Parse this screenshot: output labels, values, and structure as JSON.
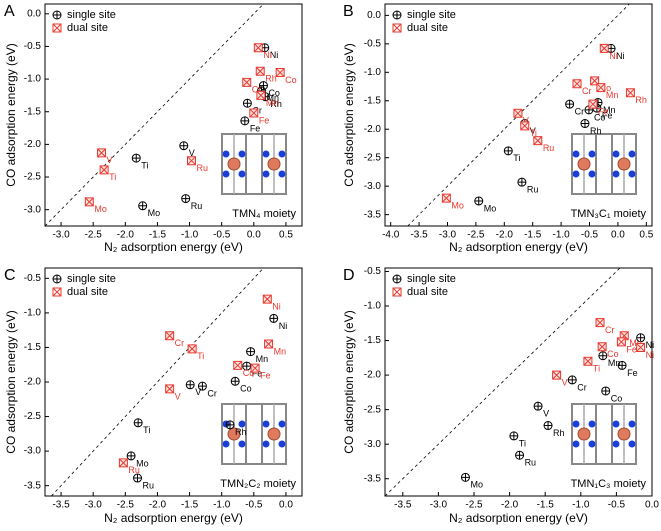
{
  "chart_data": [
    {
      "type": "scatter",
      "panel_label": "A",
      "annotation": "TMN₄ moiety",
      "x_label": "N₂ adsorption energy (eV)",
      "y_label": "CO adsorption energy (eV)",
      "xlim": [
        -3.25,
        0.75
      ],
      "ylim": [
        -3.25,
        0.15
      ],
      "xticks": [
        {
          "value": -3,
          "label": "-3.0"
        },
        -2.5,
        {
          "value": -2,
          "label": "-2.0"
        },
        -1.5,
        {
          "value": -1,
          "label": "-1.0"
        },
        -0.5,
        {
          "value": 0,
          "label": "0.0"
        },
        0.5
      ],
      "yticks": [
        {
          "value": -3,
          "label": "-3.0"
        },
        -2.5,
        {
          "value": -2,
          "label": "-2.0"
        },
        -1.5,
        {
          "value": -1,
          "label": "-1.0"
        },
        -0.5,
        {
          "value": 0,
          "label": "0.0"
        }
      ],
      "legend": "upper left",
      "series": [
        {
          "name": "single site",
          "color": "#000000",
          "marker": "circle-plus",
          "labels": [
            "Ni",
            "Co",
            "Mn",
            "Rh",
            "Cr",
            "Fe",
            "V",
            "Ti",
            "Ru",
            "Mo"
          ],
          "x": [
            0.17,
            0.15,
            0.12,
            0.18,
            -0.1,
            -0.14,
            -1.09,
            -1.83,
            -1.06,
            -1.73
          ],
          "values": [
            -0.52,
            -1.1,
            -1.18,
            -1.27,
            -1.37,
            -1.64,
            -2.02,
            -2.21,
            -2.83,
            -2.94
          ]
        },
        {
          "name": "dual site",
          "color": "#e8392e",
          "marker": "square-cross",
          "labels": [
            "Ni",
            "Rh",
            "Co",
            "Cr",
            "Mn",
            "Fe",
            "V",
            "Ti",
            "Ru",
            "Mo"
          ],
          "x": [
            0.07,
            0.1,
            0.41,
            -0.11,
            0.11,
            0.0,
            -2.37,
            -2.33,
            -0.97,
            -2.56
          ],
          "values": [
            -0.52,
            -0.88,
            -0.9,
            -1.05,
            -1.25,
            -1.52,
            -2.13,
            -2.39,
            -2.25,
            -2.88
          ]
        }
      ]
    },
    {
      "type": "scatter",
      "panel_label": "B",
      "annotation": "TMN₃C₁ moiety",
      "x_label": "N₂ adsorption energy (eV)",
      "y_label": "CO adsorption energy (eV)",
      "xlim": [
        -4.1,
        0.6
      ],
      "ylim": [
        -3.7,
        0.2
      ],
      "xticks": [
        {
          "value": -4,
          "label": "-4.0"
        },
        -3.5,
        {
          "value": -3,
          "label": "-3.0"
        },
        -2.5,
        {
          "value": -2,
          "label": "-2.0"
        },
        -1.5,
        {
          "value": -1,
          "label": "-1.0"
        },
        -0.5,
        {
          "value": 0,
          "label": "0.0"
        },
        0.5
      ],
      "yticks": [
        -3.5,
        {
          "value": -3,
          "label": "-3.0"
        },
        -2.5,
        {
          "value": -2,
          "label": "-2.0"
        },
        -1.5,
        {
          "value": -1,
          "label": "-1.0"
        },
        -0.5,
        {
          "value": 0,
          "label": "0.0"
        }
      ],
      "legend": "upper left",
      "series": [
        {
          "name": "single site",
          "color": "#000000",
          "marker": "circle-plus",
          "labels": [
            "Ni",
            "Cr",
            "Co",
            "Fe",
            "Mn",
            "Rh",
            "V",
            "Ti",
            "Ru",
            "Mo"
          ],
          "x": [
            -0.12,
            -0.85,
            -0.51,
            -0.37,
            -0.35,
            -0.58,
            -1.64,
            -1.93,
            -1.69,
            -2.45
          ],
          "values": [
            -0.58,
            -1.56,
            -1.66,
            -1.63,
            -1.53,
            -1.9,
            -1.9,
            -2.38,
            -2.93,
            -3.26
          ]
        },
        {
          "name": "dual site",
          "color": "#e8392e",
          "marker": "square-cross",
          "labels": [
            "Ni",
            "Co",
            "Cr",
            "Mn",
            "Fe",
            "Rh",
            "V",
            "Ti",
            "Ru",
            "Mo"
          ],
          "x": [
            -0.24,
            -0.41,
            -0.72,
            -0.3,
            -0.44,
            0.22,
            -1.76,
            -1.64,
            -1.41,
            -3.02
          ],
          "values": [
            -0.58,
            -1.15,
            -1.2,
            -1.27,
            -1.56,
            -1.36,
            -1.72,
            -1.94,
            -2.2,
            -3.21
          ]
        }
      ]
    },
    {
      "type": "scatter",
      "panel_label": "C",
      "annotation": "TMN₂C₂ moiety",
      "x_label": "N₂ adsorption energy (eV)",
      "y_label": "CO adsorption energy (eV)",
      "xlim": [
        -3.75,
        0.25
      ],
      "ylim": [
        -3.65,
        -0.35
      ],
      "xticks": [
        -3.5,
        {
          "value": -3,
          "label": "-3.0"
        },
        -2.5,
        {
          "value": -2,
          "label": "-2.0"
        },
        -1.5,
        {
          "value": -1,
          "label": "-1.0"
        },
        -0.5,
        {
          "value": 0,
          "label": "0.0"
        }
      ],
      "yticks": [
        -3.5,
        {
          "value": -3,
          "label": "-3.0"
        },
        -2.5,
        {
          "value": -2,
          "label": "-2.0"
        },
        -1.5,
        {
          "value": -1,
          "label": "-1.0"
        },
        -0.5
      ],
      "legend": "upper left",
      "series": [
        {
          "name": "single site",
          "color": "#000000",
          "marker": "circle-plus",
          "labels": [
            "Ni",
            "Mn",
            "Fe",
            "Co",
            "V",
            "Cr",
            "Ti",
            "Rh",
            "Mo",
            "Ru"
          ],
          "x": [
            -0.19,
            -0.55,
            -0.61,
            -0.79,
            -1.49,
            -1.3,
            -2.3,
            -0.87,
            -2.41,
            -2.31
          ],
          "values": [
            -1.08,
            -1.56,
            -1.77,
            -1.99,
            -2.04,
            -2.06,
            -2.59,
            -2.62,
            -3.07,
            -3.39
          ]
        },
        {
          "name": "dual site",
          "color": "#e8392e",
          "marker": "square-cross",
          "labels": [
            "Ni",
            "Mn",
            "Co",
            "Fe",
            "Cr",
            "Ti",
            "V",
            "Ru"
          ],
          "x": [
            -0.29,
            -0.27,
            -0.75,
            -0.48,
            -1.81,
            -1.46,
            -1.81,
            -2.53
          ],
          "values": [
            -0.8,
            -1.45,
            -1.76,
            -1.8,
            -1.33,
            -1.52,
            -2.1,
            -3.17
          ]
        }
      ]
    },
    {
      "type": "scatter",
      "panel_label": "D",
      "annotation": "TMN₁C₃ moiety",
      "x_label": "N₂ adsorption energy (eV)",
      "y_label": "CO adsorption energy (eV)",
      "xlim": [
        -3.75,
        0.0
      ],
      "ylim": [
        -3.75,
        -0.45
      ],
      "xticks": [
        -3.5,
        {
          "value": -3,
          "label": "-3.0"
        },
        -2.5,
        {
          "value": -2,
          "label": "-2.0"
        },
        -1.5,
        {
          "value": -1,
          "label": "-1.0"
        },
        -0.5,
        {
          "value": 0,
          "label": "0.0"
        }
      ],
      "yticks": [
        -3.5,
        {
          "value": -3,
          "label": "-3.0"
        },
        -2.5,
        {
          "value": -2,
          "label": "-2.0"
        },
        -1.5,
        {
          "value": -1,
          "label": "-1.0"
        },
        -0.5
      ],
      "legend": "upper left",
      "series": [
        {
          "name": "single site",
          "color": "#000000",
          "marker": "circle-plus",
          "labels": [
            "Ni",
            "Mn",
            "Fe",
            "Cr",
            "Co",
            "V",
            "Rh",
            "Ti",
            "Ru",
            "Mo"
          ],
          "x": [
            -0.16,
            -0.69,
            -0.42,
            -1.12,
            -0.65,
            -1.6,
            -1.46,
            -1.94,
            -1.86,
            -2.62
          ],
          "values": [
            -1.46,
            -1.72,
            -1.86,
            -2.07,
            -2.23,
            -2.45,
            -2.73,
            -2.88,
            -3.16,
            -3.48
          ]
        },
        {
          "name": "dual site",
          "color": "#e8392e",
          "marker": "square-cross",
          "labels": [
            "Cr",
            "Mn",
            "Fe",
            "Ni",
            "Co",
            "Ti",
            "V"
          ],
          "x": [
            -0.73,
            -0.39,
            -0.43,
            -0.16,
            -0.7,
            -0.9,
            -1.34
          ],
          "values": [
            -1.24,
            -1.43,
            -1.52,
            -1.6,
            -1.59,
            -1.8,
            -2.0
          ]
        }
      ]
    }
  ]
}
